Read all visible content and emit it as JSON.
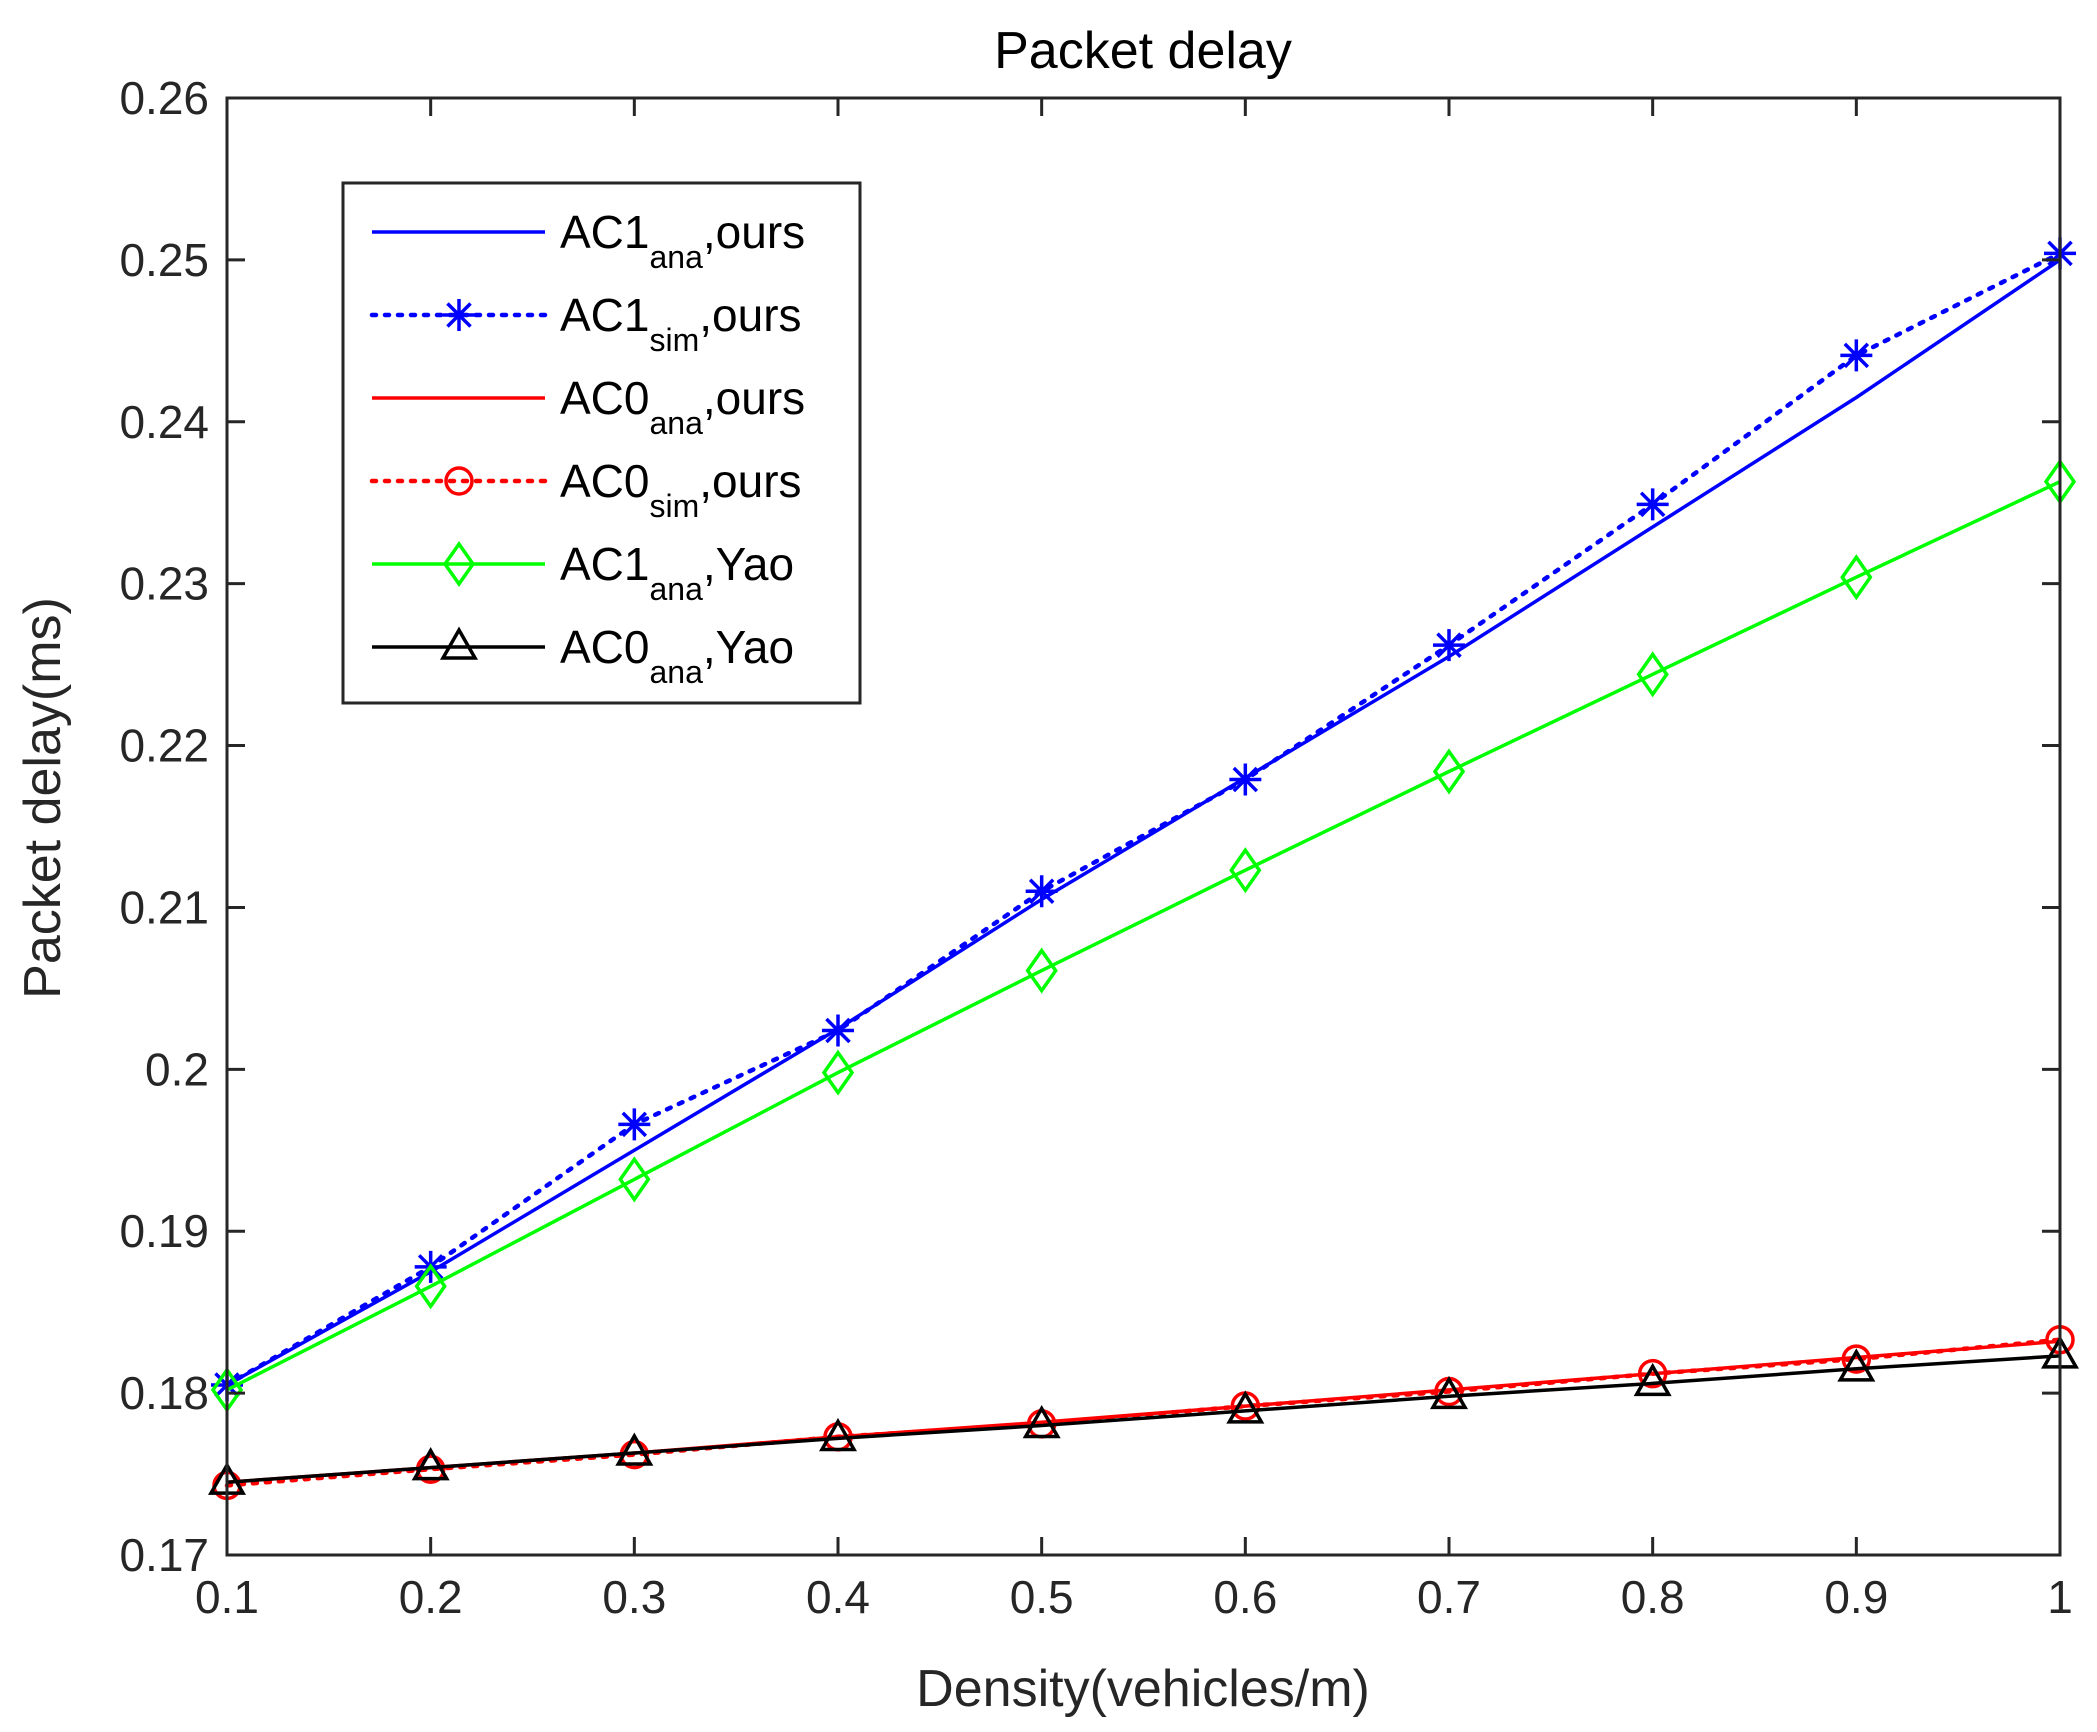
{
  "chart_data": {
    "type": "line",
    "title": "Packet delay",
    "xlabel": "Density(vehicles/m)",
    "ylabel": "Packet delay(ms)",
    "xlim": [
      0.1,
      1
    ],
    "ylim": [
      0.17,
      0.26
    ],
    "x": [
      0.1,
      0.2,
      0.3,
      0.4,
      0.5,
      0.6,
      0.7,
      0.8,
      0.9,
      1
    ],
    "xticks": [
      "0.1",
      "0.2",
      "0.3",
      "0.4",
      "0.5",
      "0.6",
      "0.7",
      "0.8",
      "0.9",
      "1"
    ],
    "yticks": [
      "0.17",
      "0.18",
      "0.19",
      "0.2",
      "0.21",
      "0.22",
      "0.23",
      "0.24",
      "0.25",
      "0.26"
    ],
    "grid": false,
    "legend_position": "top-left",
    "series": [
      {
        "key": "ac1-ana-ours",
        "label_main": "AC1",
        "label_sub": "ana",
        "label_tail": ",ours",
        "color": "#0000FF",
        "line": "solid",
        "marker": "none",
        "values": [
          0.1805,
          0.1875,
          0.195,
          0.2025,
          0.2105,
          0.218,
          0.2255,
          0.2335,
          0.2415,
          0.25
        ]
      },
      {
        "key": "ac1-sim-ours",
        "label_main": "AC1",
        "label_sub": "sim",
        "label_tail": ",ours",
        "color": "#0000FF",
        "line": "dotted",
        "marker": "asterisk",
        "values": [
          0.1805,
          0.1878,
          0.1966,
          0.2024,
          0.211,
          0.2179,
          0.2262,
          0.2349,
          0.2441,
          0.2504
        ]
      },
      {
        "key": "ac0-ana-ours",
        "label_main": "AC0",
        "label_sub": "ana",
        "label_tail": ",ours",
        "color": "#FF0000",
        "line": "solid",
        "marker": "none",
        "values": [
          0.1745,
          0.1754,
          0.1763,
          0.1773,
          0.1782,
          0.1792,
          0.1802,
          0.1812,
          0.1822,
          0.1832
        ]
      },
      {
        "key": "ac0-sim-ours",
        "label_main": "AC0",
        "label_sub": "sim",
        "label_tail": ",ours",
        "color": "#FF0000",
        "line": "dotted",
        "marker": "circle",
        "values": [
          0.1743,
          0.1753,
          0.1762,
          0.1773,
          0.1781,
          0.1792,
          0.1801,
          0.1812,
          0.1821,
          0.1833
        ]
      },
      {
        "key": "ac1-ana-yao",
        "label_main": "AC1",
        "label_sub": "ana",
        "label_tail": ",Yao",
        "color": "#00FF00",
        "line": "solid",
        "marker": "diamond",
        "values": [
          0.1802,
          0.1866,
          0.1932,
          0.1998,
          0.2061,
          0.2123,
          0.2184,
          0.2244,
          0.2304,
          0.2363
        ]
      },
      {
        "key": "ac0-ana-yao",
        "label_main": "AC0",
        "label_sub": "ana",
        "label_tail": ",Yao",
        "color": "#000000",
        "line": "solid",
        "marker": "triangle",
        "values": [
          0.1745,
          0.1754,
          0.1763,
          0.1772,
          0.178,
          0.1789,
          0.1798,
          0.1806,
          0.1815,
          0.1823
        ]
      }
    ]
  }
}
